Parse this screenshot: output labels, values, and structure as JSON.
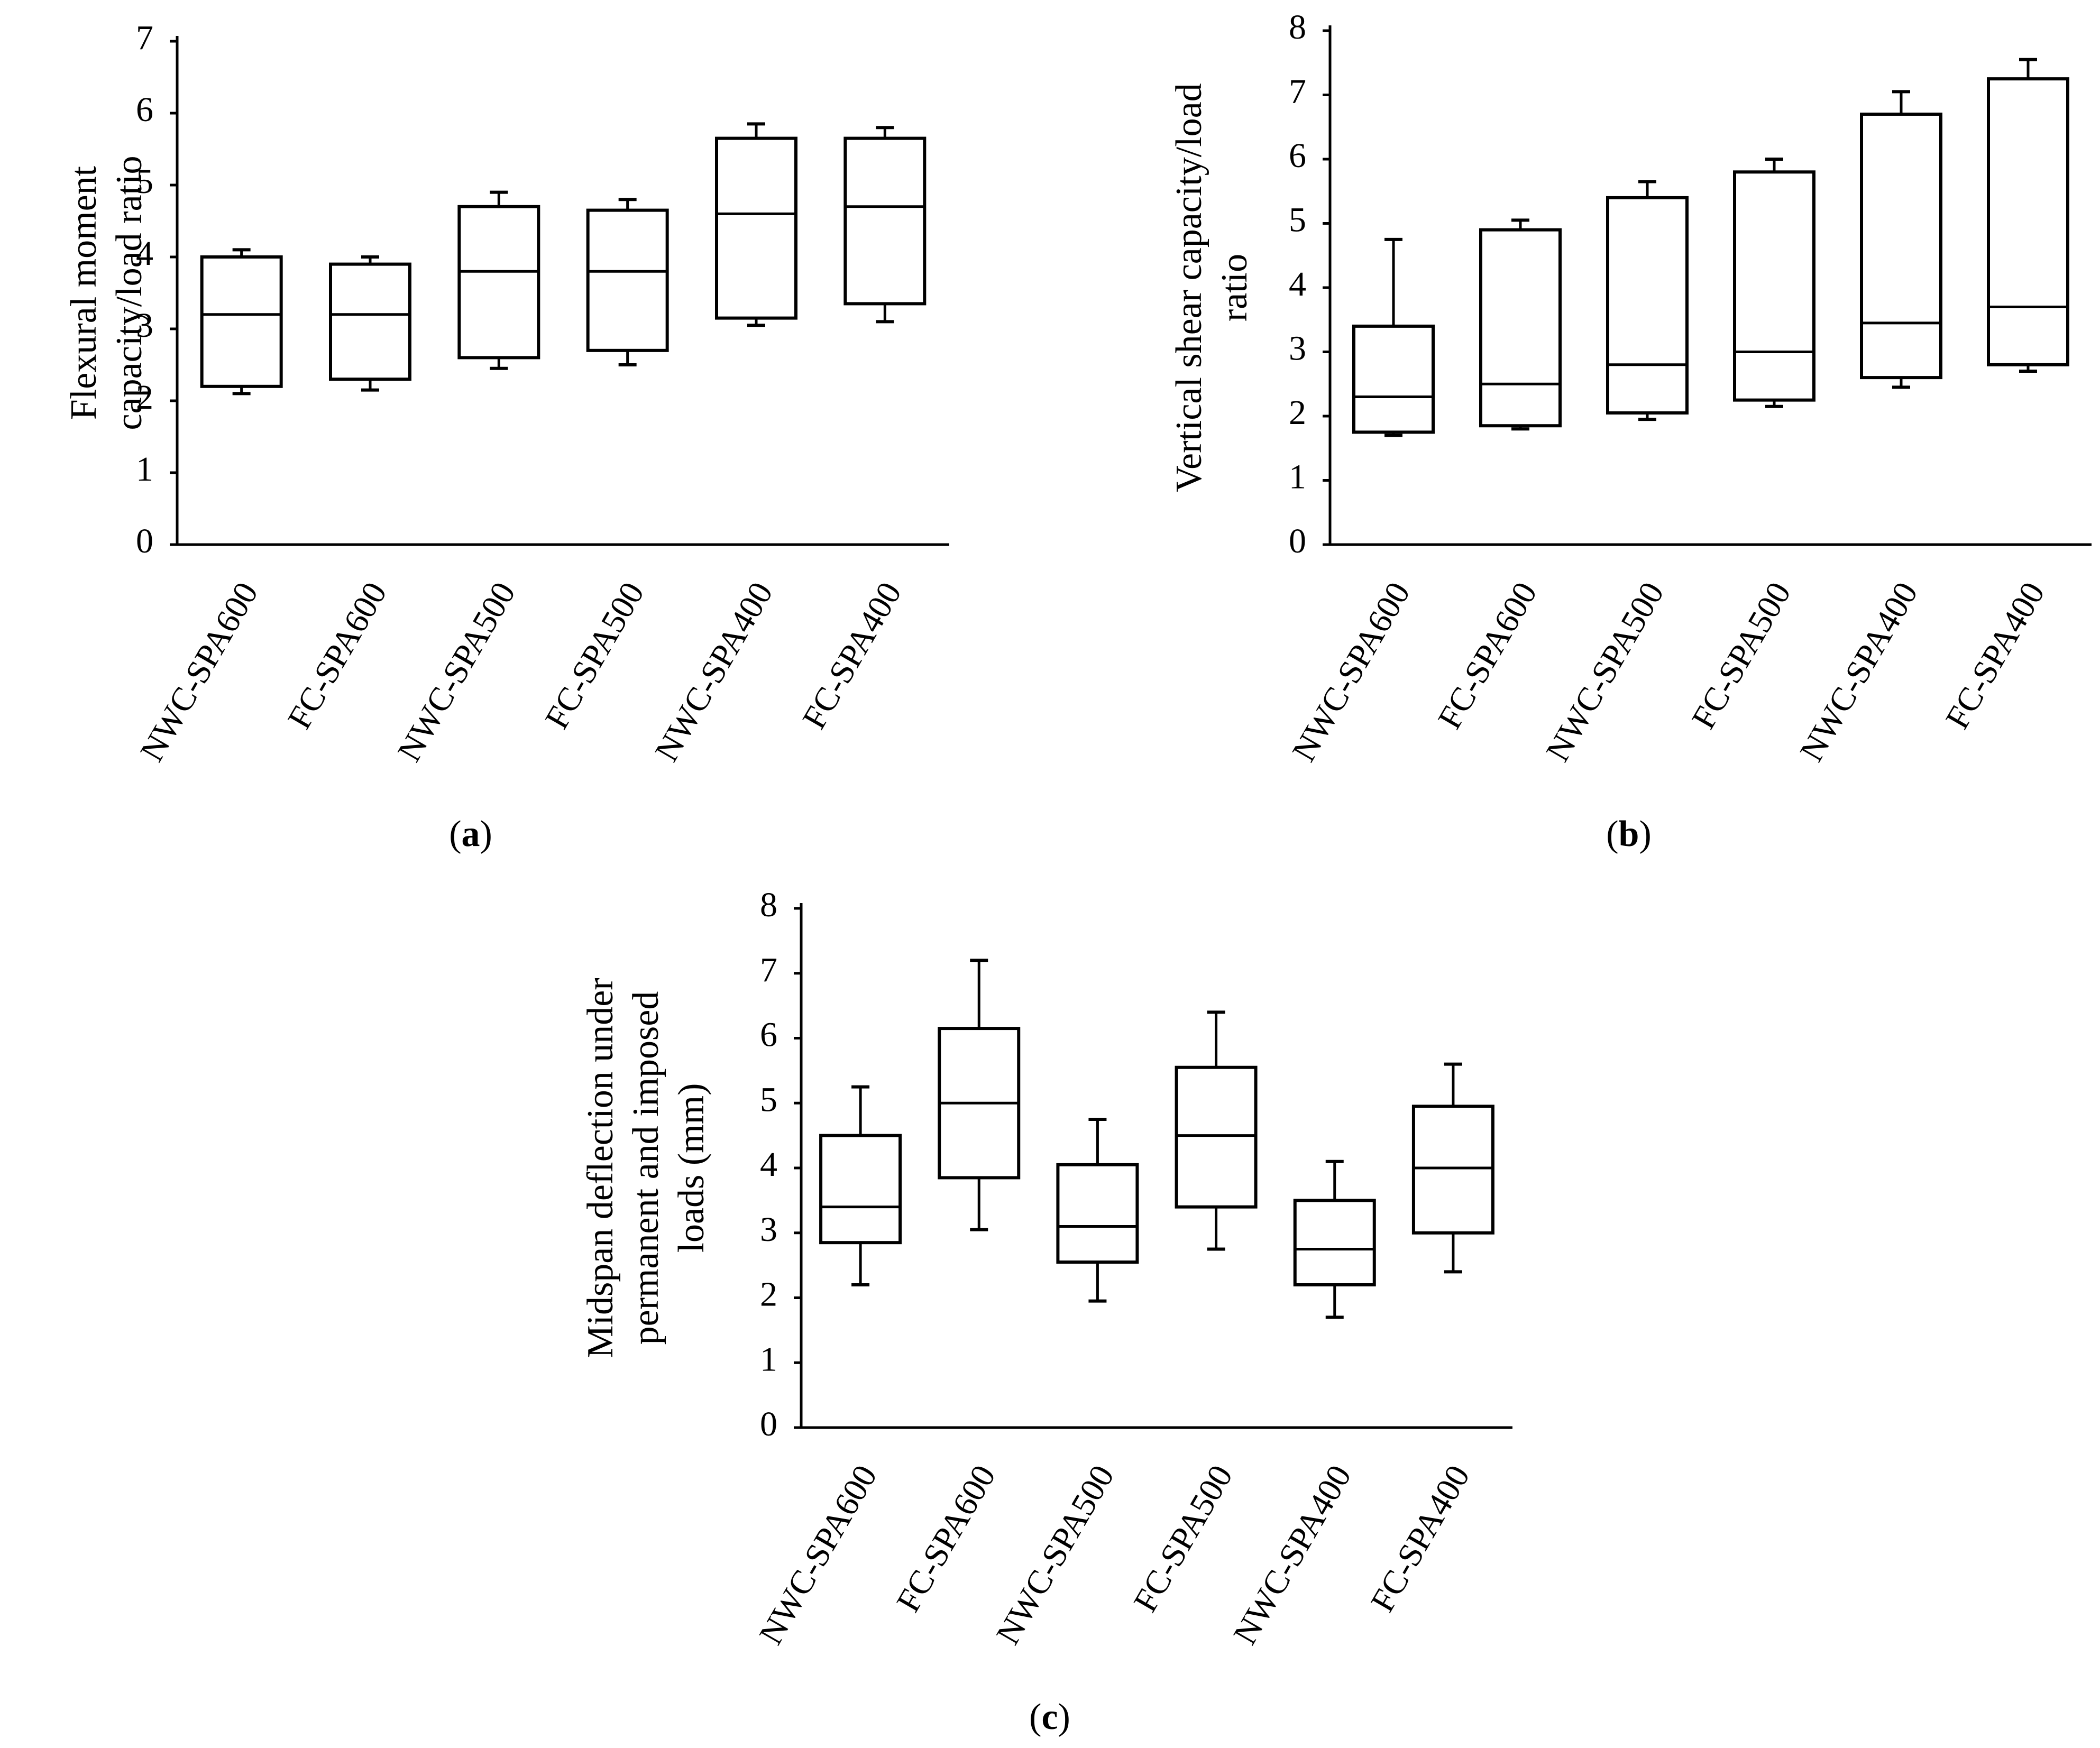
{
  "chart_data": [
    {
      "type": "box",
      "panel_label": "a",
      "categories": [
        "NWC-SPA600",
        "FC-SPA600",
        "NWC-SPA500",
        "FC-SPA500",
        "NWC-SPA400",
        "FC-SPA400"
      ],
      "ylabel_lines": [
        "Flexural moment",
        "capacity/load ratio"
      ],
      "ylim": [
        0,
        7
      ],
      "yticks": [
        0,
        1,
        2,
        3,
        4,
        5,
        6,
        7
      ],
      "boxes": [
        {
          "min": 2.1,
          "q1": 2.2,
          "median": 3.2,
          "q3": 4.0,
          "max": 4.1
        },
        {
          "min": 2.15,
          "q1": 2.3,
          "median": 3.2,
          "q3": 3.9,
          "max": 4.0
        },
        {
          "min": 2.45,
          "q1": 2.6,
          "median": 3.8,
          "q3": 4.7,
          "max": 4.9
        },
        {
          "min": 2.5,
          "q1": 2.7,
          "median": 3.8,
          "q3": 4.65,
          "max": 4.8
        },
        {
          "min": 3.05,
          "q1": 3.15,
          "median": 4.6,
          "q3": 5.65,
          "max": 5.85
        },
        {
          "min": 3.1,
          "q1": 3.35,
          "median": 4.7,
          "q3": 5.65,
          "max": 5.8
        }
      ]
    },
    {
      "type": "box",
      "panel_label": "b",
      "categories": [
        "NWC-SPA600",
        "FC-SPA600",
        "NWC-SPA500",
        "FC-SPA500",
        "NWC-SPA400",
        "FC-SPA400"
      ],
      "ylabel_lines": [
        "Vertical shear capacity/load",
        "ratio"
      ],
      "ylim": [
        0,
        8
      ],
      "yticks": [
        0,
        1,
        2,
        3,
        4,
        5,
        6,
        7,
        8
      ],
      "boxes": [
        {
          "min": 1.7,
          "q1": 1.75,
          "median": 2.3,
          "q3": 3.4,
          "max": 4.75
        },
        {
          "min": 1.8,
          "q1": 1.85,
          "median": 2.5,
          "q3": 4.9,
          "max": 5.05
        },
        {
          "min": 1.95,
          "q1": 2.05,
          "median": 2.8,
          "q3": 5.4,
          "max": 5.65
        },
        {
          "min": 2.15,
          "q1": 2.25,
          "median": 3.0,
          "q3": 5.8,
          "max": 6.0
        },
        {
          "min": 2.45,
          "q1": 2.6,
          "median": 3.45,
          "q3": 6.7,
          "max": 7.05
        },
        {
          "min": 2.7,
          "q1": 2.8,
          "median": 3.7,
          "q3": 7.25,
          "max": 7.55
        }
      ]
    },
    {
      "type": "box",
      "panel_label": "c",
      "categories": [
        "NWC-SPA600",
        "FC-SPA600",
        "NWC-SPA500",
        "FC-SPA500",
        "NWC-SPA400",
        "FC-SPA400"
      ],
      "ylabel_lines": [
        "Midspan deflection under",
        "permanent and imposed",
        "loads (mm)"
      ],
      "ylim": [
        0,
        8
      ],
      "yticks": [
        0,
        1,
        2,
        3,
        4,
        5,
        6,
        7,
        8
      ],
      "boxes": [
        {
          "min": 2.2,
          "q1": 2.85,
          "median": 3.4,
          "q3": 4.5,
          "max": 5.25
        },
        {
          "min": 3.05,
          "q1": 3.85,
          "median": 5.0,
          "q3": 6.15,
          "max": 7.2
        },
        {
          "min": 1.95,
          "q1": 2.55,
          "median": 3.1,
          "q3": 4.05,
          "max": 4.75
        },
        {
          "min": 2.75,
          "q1": 3.4,
          "median": 4.5,
          "q3": 5.55,
          "max": 6.4
        },
        {
          "min": 1.7,
          "q1": 2.2,
          "median": 2.75,
          "q3": 3.5,
          "max": 4.1
        },
        {
          "min": 2.4,
          "q1": 3.0,
          "median": 4.0,
          "q3": 4.95,
          "max": 5.6
        }
      ]
    }
  ]
}
